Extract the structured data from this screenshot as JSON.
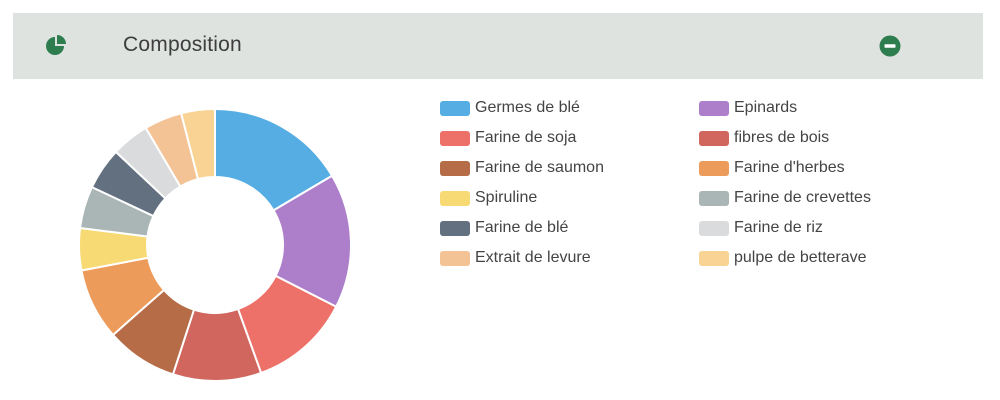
{
  "panel": {
    "title": "Composition",
    "header_icon": "pie-chart-icon",
    "collapse_icon": "minus-circle-icon",
    "accent_color": "#2e7d4f"
  },
  "chart_data": {
    "type": "pie",
    "donut": true,
    "legend_position": "right",
    "series": [
      {
        "name": "Germes de blé",
        "value": 16.5,
        "color": "#55ade3"
      },
      {
        "name": "Epinards",
        "value": 16.0,
        "color": "#ad7fca"
      },
      {
        "name": "Farine de soja",
        "value": 12.0,
        "color": "#ed7168"
      },
      {
        "name": "fibres de bois",
        "value": 10.5,
        "color": "#d0665e"
      },
      {
        "name": "Farine de saumon",
        "value": 8.5,
        "color": "#b56c47"
      },
      {
        "name": "Farine d'herbes",
        "value": 8.5,
        "color": "#ed9b5b"
      },
      {
        "name": "Spiruline",
        "value": 5.0,
        "color": "#f7da73"
      },
      {
        "name": "Farine de crevettes",
        "value": 5.0,
        "color": "#aab6b5"
      },
      {
        "name": "Farine de blé",
        "value": 5.0,
        "color": "#627080"
      },
      {
        "name": "Farine de riz",
        "value": 4.5,
        "color": "#dadbdc"
      },
      {
        "name": "Extrait de levure",
        "value": 4.5,
        "color": "#f3c295"
      },
      {
        "name": "pulpe de betterave",
        "value": 4.0,
        "color": "#f8d393"
      }
    ]
  }
}
